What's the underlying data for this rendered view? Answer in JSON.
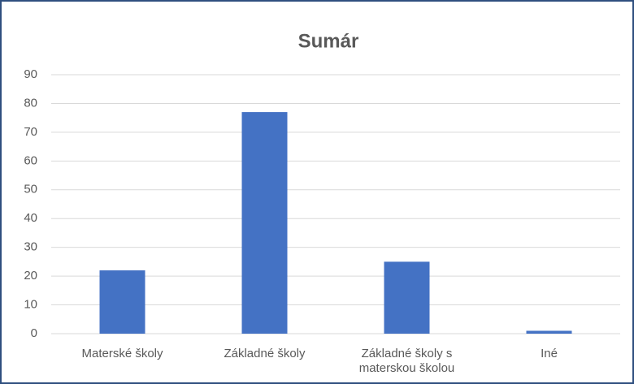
{
  "chart_data": {
    "type": "bar",
    "title": "Sumár",
    "categories": [
      "Materské školy",
      "Základné školy",
      "Základné školy s materskou školou",
      "Iné"
    ],
    "values": [
      22,
      77,
      25,
      1
    ],
    "color": "#4472c4",
    "ylim": [
      0,
      90
    ],
    "yticks": [
      0,
      10,
      20,
      30,
      40,
      50,
      60,
      70,
      80,
      90
    ],
    "grid": true
  }
}
